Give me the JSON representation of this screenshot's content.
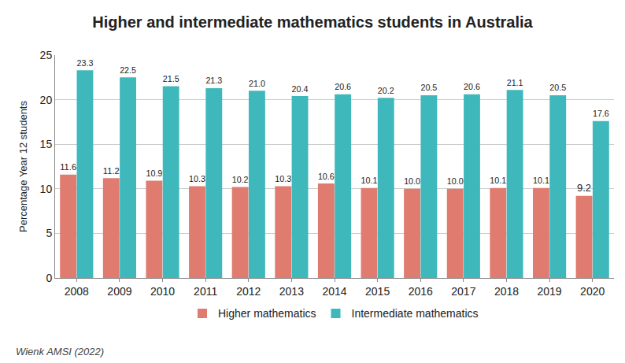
{
  "chart_data": {
    "type": "bar",
    "title": "Higher and intermediate mathematics students in Australia",
    "y_label": "Percentage Year 12 students",
    "annotations": [
      "Wienk AMSI (2022)"
    ],
    "categories": [
      "2008",
      "2009",
      "2010",
      "2011",
      "2012",
      "2013",
      "2014",
      "2015",
      "2016",
      "2017",
      "2018",
      "2019",
      "2020"
    ],
    "series": [
      {
        "name": "Higher mathematics",
        "color": "#e07b6f",
        "values": [
          11.6,
          11.2,
          10.9,
          10.3,
          10.2,
          10.3,
          10.6,
          10.1,
          10.0,
          10.0,
          10.1,
          10.1,
          9.2
        ],
        "value_labels": [
          "11.6",
          "11.2",
          "10.9",
          "10.3",
          "10.2",
          "10.3",
          "10.6",
          "10.1",
          "10.0",
          "10.0",
          "10.1",
          "10.1",
          "9.2"
        ]
      },
      {
        "name": "Intermediate mathematics",
        "color": "#3fb8bc",
        "values": [
          23.3,
          22.5,
          21.5,
          21.3,
          21.0,
          20.4,
          20.6,
          20.2,
          20.5,
          20.6,
          21.1,
          20.5,
          17.6
        ],
        "value_labels": [
          "23.3",
          "22.5",
          "21.5",
          "21.3",
          "21.0",
          "20.4",
          "20.6",
          "20.2",
          "20.5",
          "20.6",
          "21.1",
          "20.5",
          "17.6"
        ]
      }
    ],
    "ylim": [
      0,
      25
    ],
    "yticks": [
      0,
      5,
      10,
      15,
      20,
      25
    ],
    "grid": true,
    "legend": "bottom",
    "data_labels": true
  }
}
